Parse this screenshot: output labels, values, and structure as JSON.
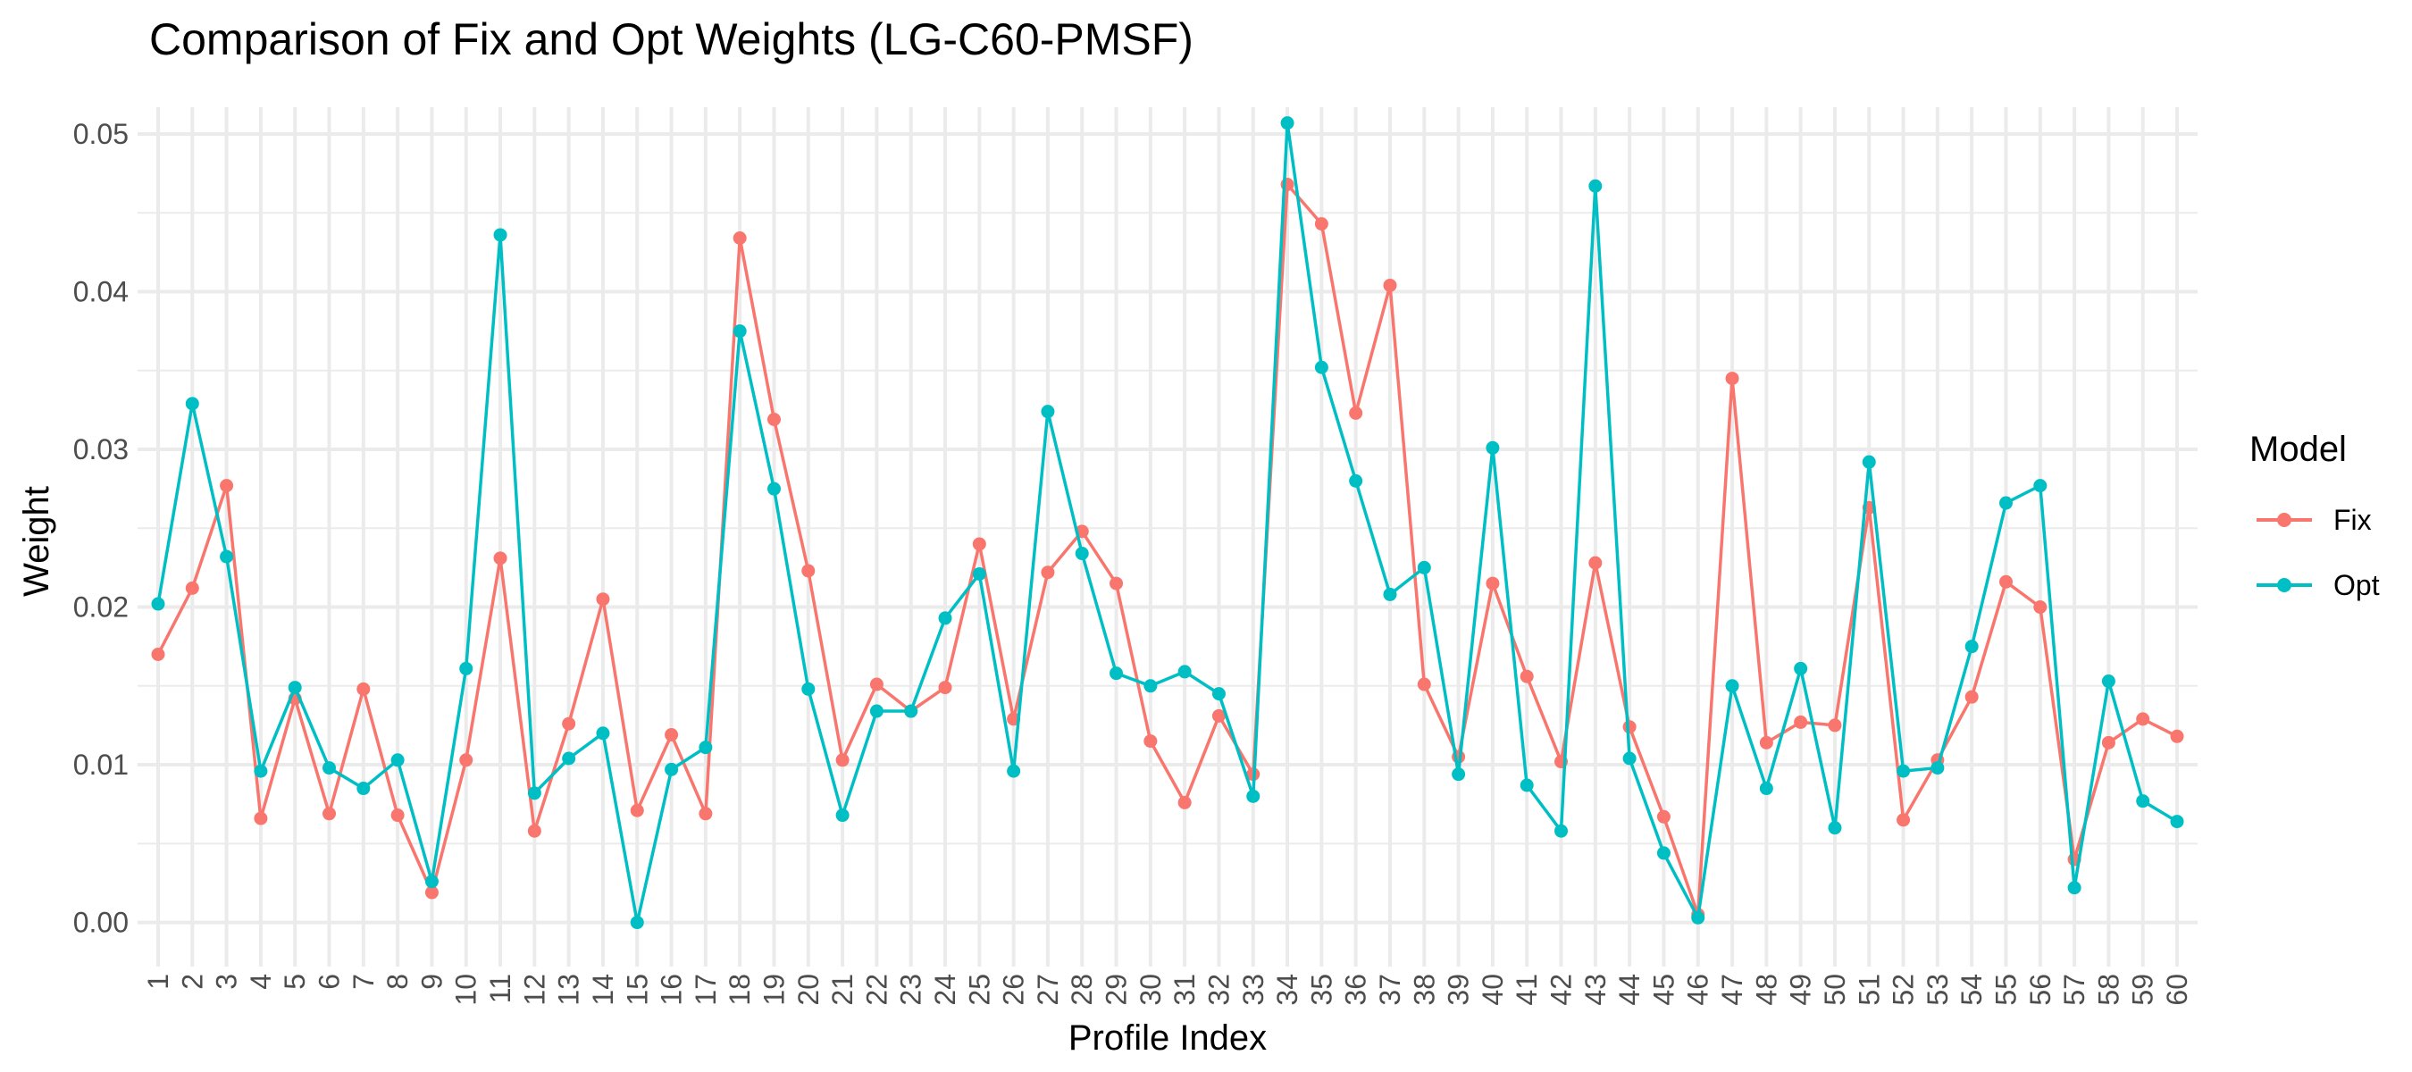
{
  "chart_data": {
    "type": "line",
    "title": "Comparison of Fix and Opt Weights (LG-C60-PMSF)",
    "xlabel": "Profile Index",
    "ylabel": "Weight",
    "ylim": [
      -0.0028,
      0.0517
    ],
    "yticks": [
      0.0,
      0.01,
      0.02,
      0.03,
      0.04,
      0.05
    ],
    "ytick_labels": [
      "0.00",
      "0.01",
      "0.02",
      "0.03",
      "0.04",
      "0.05"
    ],
    "x": [
      1,
      2,
      3,
      4,
      5,
      6,
      7,
      8,
      9,
      10,
      11,
      12,
      13,
      14,
      15,
      16,
      17,
      18,
      19,
      20,
      21,
      22,
      23,
      24,
      25,
      26,
      27,
      28,
      29,
      30,
      31,
      32,
      33,
      34,
      35,
      36,
      37,
      38,
      39,
      40,
      41,
      42,
      43,
      44,
      45,
      46,
      47,
      48,
      49,
      50,
      51,
      52,
      53,
      54,
      55,
      56,
      57,
      58,
      59,
      60
    ],
    "x_tick_labels": [
      "1",
      "2",
      "3",
      "4",
      "5",
      "6",
      "7",
      "8",
      "9",
      "10",
      "11",
      "12",
      "13",
      "14",
      "15",
      "16",
      "17",
      "18",
      "19",
      "20",
      "21",
      "22",
      "23",
      "24",
      "25",
      "26",
      "27",
      "28",
      "29",
      "30",
      "31",
      "32",
      "33",
      "34",
      "35",
      "36",
      "37",
      "38",
      "39",
      "40",
      "41",
      "42",
      "43",
      "44",
      "45",
      "46",
      "47",
      "48",
      "49",
      "50",
      "51",
      "52",
      "53",
      "54",
      "55",
      "56",
      "57",
      "58",
      "59",
      "60"
    ],
    "grid": true,
    "legend": {
      "title": "Model",
      "placement": "right"
    },
    "series": [
      {
        "name": "Fix",
        "color": "#F8766D",
        "values": [
          0.017,
          0.0212,
          0.0277,
          0.0066,
          0.0142,
          0.0069,
          0.0148,
          0.0068,
          0.0019,
          0.0103,
          0.0231,
          0.0058,
          0.0126,
          0.0205,
          0.0071,
          0.0119,
          0.0069,
          0.0434,
          0.0319,
          0.0223,
          0.0103,
          0.0151,
          0.0134,
          0.0149,
          0.024,
          0.0129,
          0.0222,
          0.0248,
          0.0215,
          0.0115,
          0.0076,
          0.0131,
          0.0094,
          0.0468,
          0.0443,
          0.0323,
          0.0404,
          0.0151,
          0.0105,
          0.0215,
          0.0156,
          0.0102,
          0.0228,
          0.0124,
          0.0067,
          0.0005,
          0.0345,
          0.0114,
          0.0127,
          0.0125,
          0.0263,
          0.0065,
          0.0103,
          0.0143,
          0.0216,
          0.02,
          0.004,
          0.0114,
          0.0129,
          0.0118
        ]
      },
      {
        "name": "Opt",
        "color": "#00BFC4",
        "values": [
          0.0202,
          0.0329,
          0.0232,
          0.0096,
          0.0149,
          0.0098,
          0.0085,
          0.0103,
          0.0026,
          0.0161,
          0.0436,
          0.0082,
          0.0104,
          0.012,
          0.0,
          0.0097,
          0.0111,
          0.0375,
          0.0275,
          0.0148,
          0.0068,
          0.0134,
          0.0134,
          0.0193,
          0.0221,
          0.0096,
          0.0324,
          0.0234,
          0.0158,
          0.015,
          0.0159,
          0.0145,
          0.008,
          0.0507,
          0.0352,
          0.028,
          0.0208,
          0.0225,
          0.0094,
          0.0301,
          0.0087,
          0.0058,
          0.0467,
          0.0104,
          0.0044,
          0.0003,
          0.015,
          0.0085,
          0.0161,
          0.006,
          0.0292,
          0.0096,
          0.0098,
          0.0175,
          0.0266,
          0.0277,
          0.0022,
          0.0153,
          0.0077,
          0.0064
        ]
      }
    ]
  }
}
